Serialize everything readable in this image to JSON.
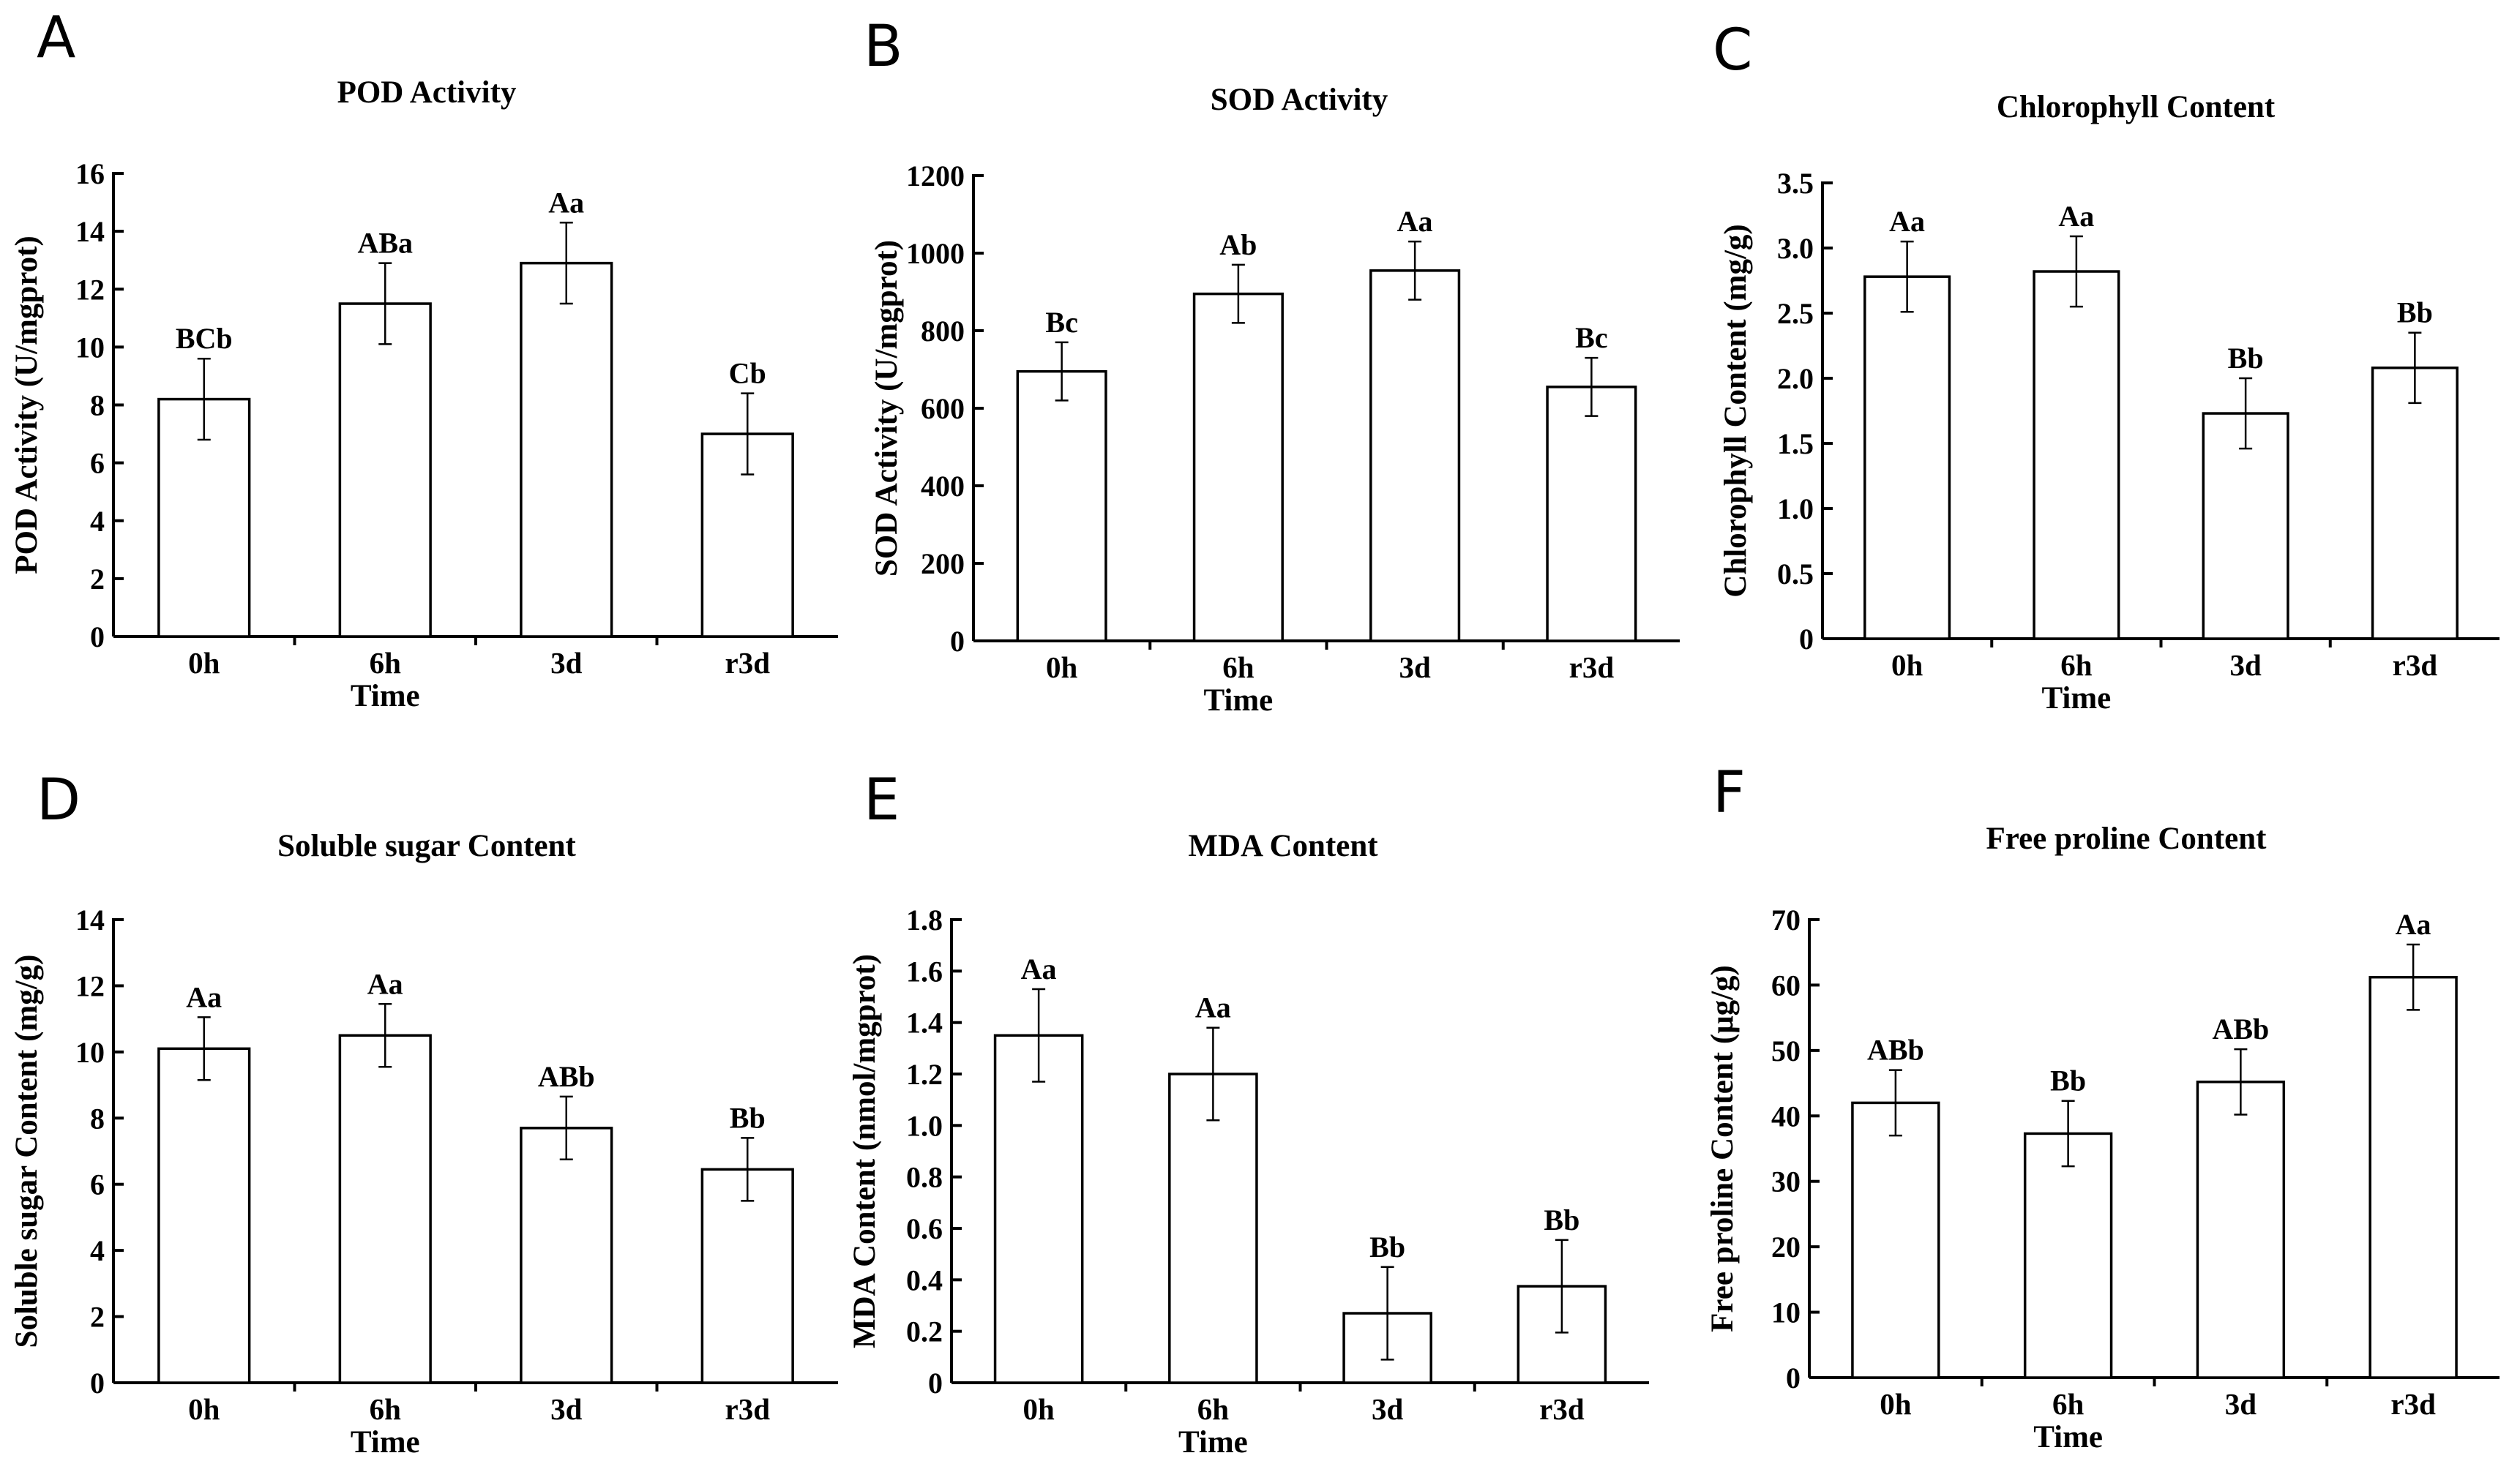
{
  "chart_data": [
    {
      "panel": "A",
      "type": "bar",
      "title": "POD Activity",
      "xlabel": "Time",
      "ylabel": "POD Activity (U/mgprot)",
      "categories": [
        "0h",
        "6h",
        "3d",
        "r3d"
      ],
      "values": [
        8.2,
        11.5,
        12.9,
        7.0
      ],
      "errors": [
        1.4,
        1.4,
        1.4,
        1.4
      ],
      "labels": [
        "BCb",
        "ABa",
        "Aa",
        "Cb"
      ],
      "ylim": [
        0,
        16
      ],
      "yticks": [
        0,
        2,
        4,
        6,
        8,
        10,
        12,
        14,
        16
      ],
      "ytick_labels": [
        "0",
        "2",
        "4",
        "6",
        "8",
        "10",
        "12",
        "14",
        "16"
      ]
    },
    {
      "panel": "B",
      "type": "bar",
      "title": "SOD Activity",
      "xlabel": "Time",
      "ylabel": "SOD Activity (U/mgprot)",
      "categories": [
        "0h",
        "6h",
        "3d",
        "r3d"
      ],
      "values": [
        695,
        895,
        955,
        655
      ],
      "errors": [
        75,
        75,
        75,
        75
      ],
      "labels": [
        "Bc",
        "Ab",
        "Aa",
        "Bc"
      ],
      "ylim": [
        0,
        1200
      ],
      "yticks": [
        0,
        200,
        400,
        600,
        800,
        1000,
        1200
      ],
      "ytick_labels": [
        "0",
        "200",
        "400",
        "600",
        "800",
        "1000",
        "1200"
      ]
    },
    {
      "panel": "C",
      "type": "bar",
      "title": "Chlorophyll Content",
      "xlabel": "Time",
      "ylabel": "Chlorophyll Content (mg/g)",
      "categories": [
        "0h",
        "6h",
        "3d",
        "r3d"
      ],
      "values": [
        2.78,
        2.82,
        1.73,
        2.08
      ],
      "errors": [
        0.27,
        0.27,
        0.27,
        0.27
      ],
      "labels": [
        "Aa",
        "Aa",
        "Bb",
        "Bb"
      ],
      "ylim": [
        0,
        3.5
      ],
      "yticks": [
        0,
        0.5,
        1.0,
        1.5,
        2.0,
        2.5,
        3.0,
        3.5
      ],
      "ytick_labels": [
        "0",
        "0.5",
        "1.0",
        "1.5",
        "2.0",
        "2.5",
        "3.0",
        "3.5"
      ]
    },
    {
      "panel": "D",
      "type": "bar",
      "title": "Soluble sugar Content",
      "xlabel": "Time",
      "ylabel": "Soluble sugar Content (mg/g)",
      "categories": [
        "0h",
        "6h",
        "3d",
        "r3d"
      ],
      "values": [
        10.1,
        10.5,
        7.7,
        6.45
      ],
      "errors": [
        0.95,
        0.95,
        0.95,
        0.95
      ],
      "labels": [
        "Aa",
        "Aa",
        "ABb",
        "Bb"
      ],
      "ylim": [
        0,
        14
      ],
      "yticks": [
        0,
        2,
        4,
        6,
        8,
        10,
        12,
        14
      ],
      "ytick_labels": [
        "0",
        "2",
        "4",
        "6",
        "8",
        "10",
        "12",
        "14"
      ]
    },
    {
      "panel": "E",
      "type": "bar",
      "title": "MDA Content",
      "xlabel": "Time",
      "ylabel": "MDA Content (nmol/mgprot)",
      "categories": [
        "0h",
        "6h",
        "3d",
        "r3d"
      ],
      "values": [
        1.35,
        1.2,
        0.27,
        0.375
      ],
      "errors": [
        0.18,
        0.18,
        0.18,
        0.18
      ],
      "labels": [
        "Aa",
        "Aa",
        "Bb",
        "Bb"
      ],
      "ylim": [
        0,
        1.8
      ],
      "yticks": [
        0,
        0.2,
        0.4,
        0.6,
        0.8,
        1.0,
        1.2,
        1.4,
        1.6,
        1.8
      ],
      "ytick_labels": [
        "0",
        "0.2",
        "0.4",
        "0.6",
        "0.8",
        "1.0",
        "1.2",
        "1.4",
        "1.6",
        "1.8"
      ]
    },
    {
      "panel": "F",
      "type": "bar",
      "title": "Free proline Content",
      "xlabel": "Time",
      "ylabel": "Free proline Content (μg/g)",
      "categories": [
        "0h",
        "6h",
        "3d",
        "r3d"
      ],
      "values": [
        42,
        37.3,
        45.2,
        61.2
      ],
      "errors": [
        5,
        5,
        5,
        5
      ],
      "labels": [
        "ABb",
        "Bb",
        "ABb",
        "Aa"
      ],
      "ylim": [
        0,
        70
      ],
      "yticks": [
        0,
        10,
        20,
        30,
        40,
        50,
        60,
        70
      ],
      "ytick_labels": [
        "0",
        "10",
        "20",
        "30",
        "40",
        "50",
        "60",
        "70"
      ]
    }
  ]
}
